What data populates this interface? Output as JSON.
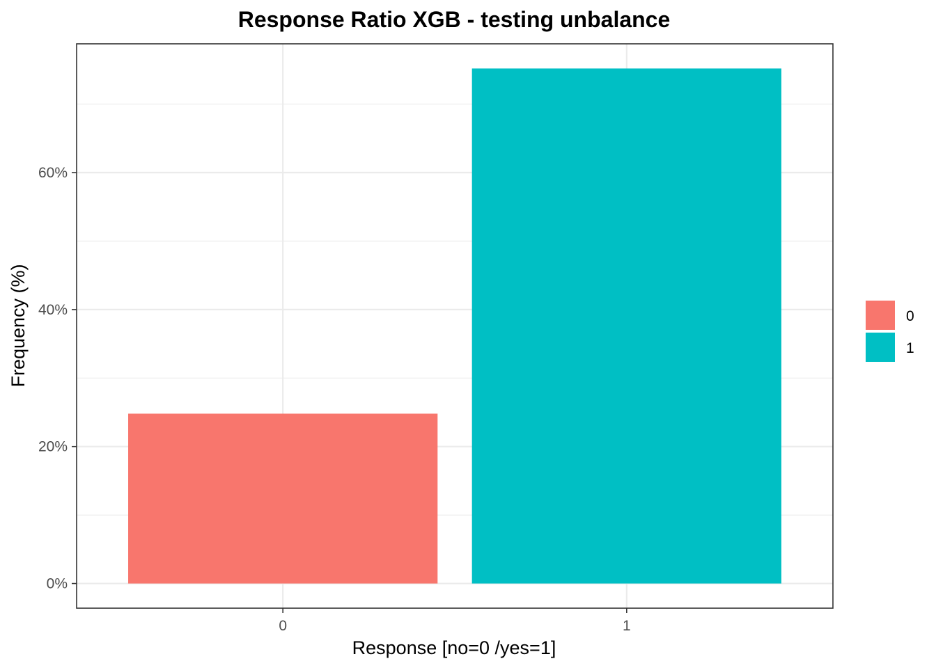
{
  "chart_data": {
    "type": "bar",
    "title": "Response Ratio XGB - testing unbalance",
    "xlabel": "Response [no=0 /yes=1]",
    "ylabel": "Frequency (%)",
    "categories": [
      "0",
      "1"
    ],
    "values": [
      24.8,
      75.2
    ],
    "colors": [
      "#F8766D",
      "#00BFC4"
    ],
    "ylim": [
      -3.6,
      78.8
    ],
    "yticks": [
      0,
      20,
      40,
      60
    ],
    "ytick_labels": [
      "0%",
      "20%",
      "40%",
      "60%"
    ],
    "ygrid_minor": [
      10,
      30,
      50,
      70
    ],
    "grid": true,
    "legend": {
      "placement": "right",
      "entries": [
        {
          "label": "0",
          "color": "#F8766D"
        },
        {
          "label": "1",
          "color": "#00BFC4"
        }
      ]
    }
  }
}
